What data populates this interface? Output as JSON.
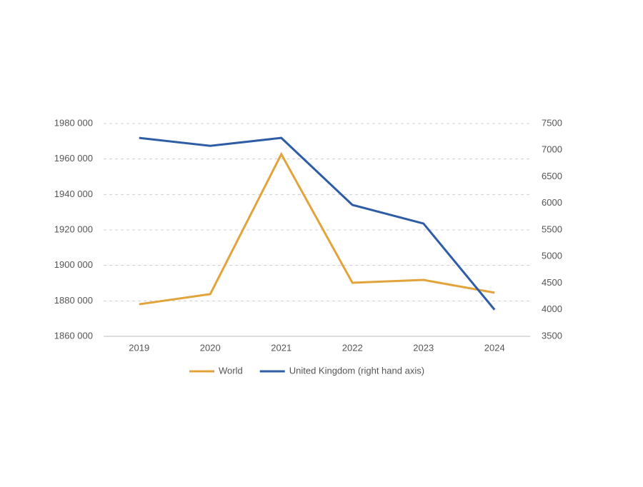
{
  "chart_data": {
    "type": "line",
    "categories": [
      "2019",
      "2020",
      "2021",
      "2022",
      "2023",
      "2024"
    ],
    "series": [
      {
        "name": "World",
        "color": "#e3a33b",
        "values": [
          1878100,
          1883800,
          1962700,
          1890200,
          1891800,
          1884600
        ]
      },
      {
        "name": "United Kingdom (right hand axis)",
        "color": "#2e5da6",
        "axis": "y2",
        "values": [
          7230,
          7080,
          7230,
          5970,
          5620,
          4000
        ]
      }
    ],
    "ylim": [
      1860000,
      1980000
    ],
    "yticks": [
      {
        "value": 1860000,
        "label": "1860 000"
      },
      {
        "value": 1880000,
        "label": "1880 000"
      },
      {
        "value": 1900000,
        "label": "1900 000"
      },
      {
        "value": 1920000,
        "label": "1920 000"
      },
      {
        "value": 1940000,
        "label": "1940 000"
      },
      {
        "value": 1960000,
        "label": "1960 000"
      },
      {
        "value": 1980000,
        "label": "1980 000"
      }
    ],
    "y2lim": [
      3500,
      7500
    ],
    "y2ticks": [
      3500,
      4000,
      4500,
      5000,
      5500,
      6000,
      6500,
      7000,
      7500
    ],
    "grid": true,
    "legend": "bottom"
  }
}
